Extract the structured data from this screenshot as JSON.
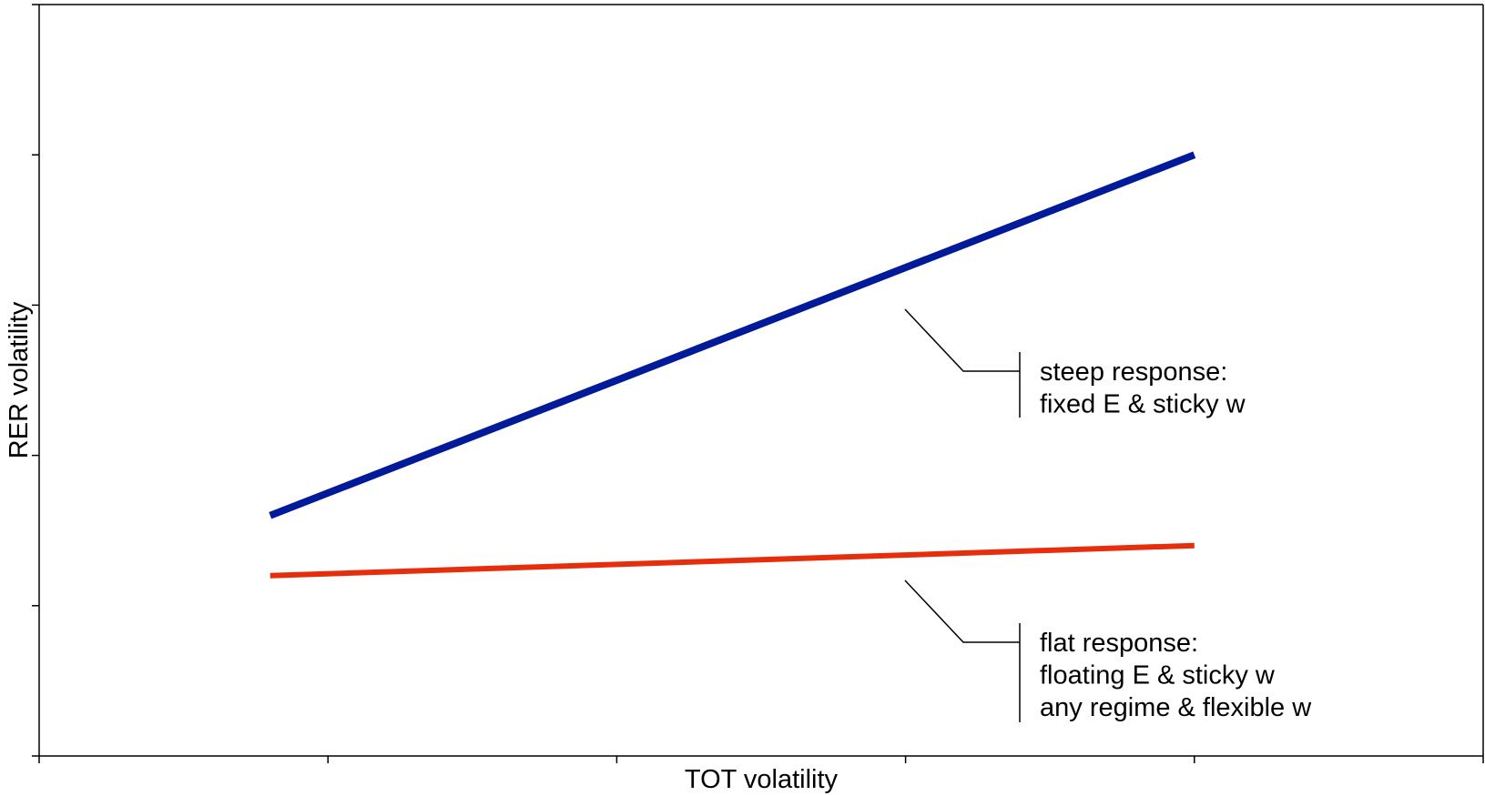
{
  "chart_data": {
    "type": "line",
    "title": "",
    "xlabel": "TOT volatility",
    "ylabel": "RER volatility",
    "xlim": [
      0,
      5
    ],
    "ylim": [
      0,
      5
    ],
    "x_ticks": [
      0,
      1,
      2,
      3,
      4,
      5
    ],
    "y_ticks": [
      0,
      1,
      2,
      3,
      4,
      5
    ],
    "tick_labels_shown": false,
    "grid": false,
    "legend": "none",
    "series": [
      {
        "key": "steep",
        "color": "#001a99",
        "x": [
          0.8,
          4.0
        ],
        "y": [
          1.6,
          4.0
        ]
      },
      {
        "key": "flat",
        "color": "#e62e0d",
        "x": [
          0.8,
          4.0
        ],
        "y": [
          1.2,
          1.4
        ]
      }
    ],
    "annotations": [
      {
        "key": "steep",
        "lines": [
          "steep response:",
          "fixed E & sticky w"
        ]
      },
      {
        "key": "flat",
        "lines": [
          "flat response:",
          "floating E & sticky w",
          "any regime & flexible w"
        ]
      }
    ]
  }
}
